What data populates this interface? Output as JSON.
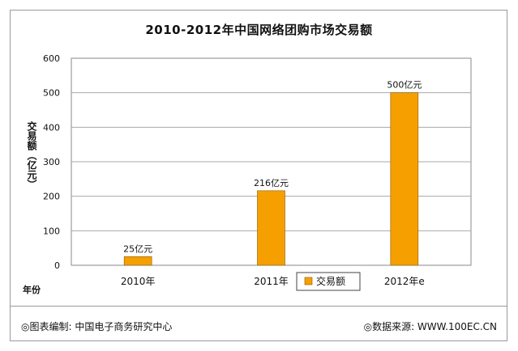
{
  "chart_data": {
    "type": "bar",
    "title": "2010-2012年中国网络团购市场交易额",
    "ylabel": "交易额（亿元）",
    "xlabel": "年份",
    "categories": [
      "2010年",
      "2011年",
      "2012年e"
    ],
    "series": [
      {
        "name": "交易额",
        "values": [
          25,
          216,
          500
        ],
        "color": "#F5A000"
      }
    ],
    "data_labels": [
      "25亿元",
      "216亿元",
      "500亿元"
    ],
    "ylim": [
      0,
      600
    ],
    "yticks": [
      0,
      100,
      200,
      300,
      400,
      500,
      600
    ],
    "grid": true,
    "legend": "bottom"
  },
  "footer": {
    "left": "◎图表编制: 中国电子商务研究中心",
    "right": "◎数据来源: WWW.100EC.CN"
  }
}
